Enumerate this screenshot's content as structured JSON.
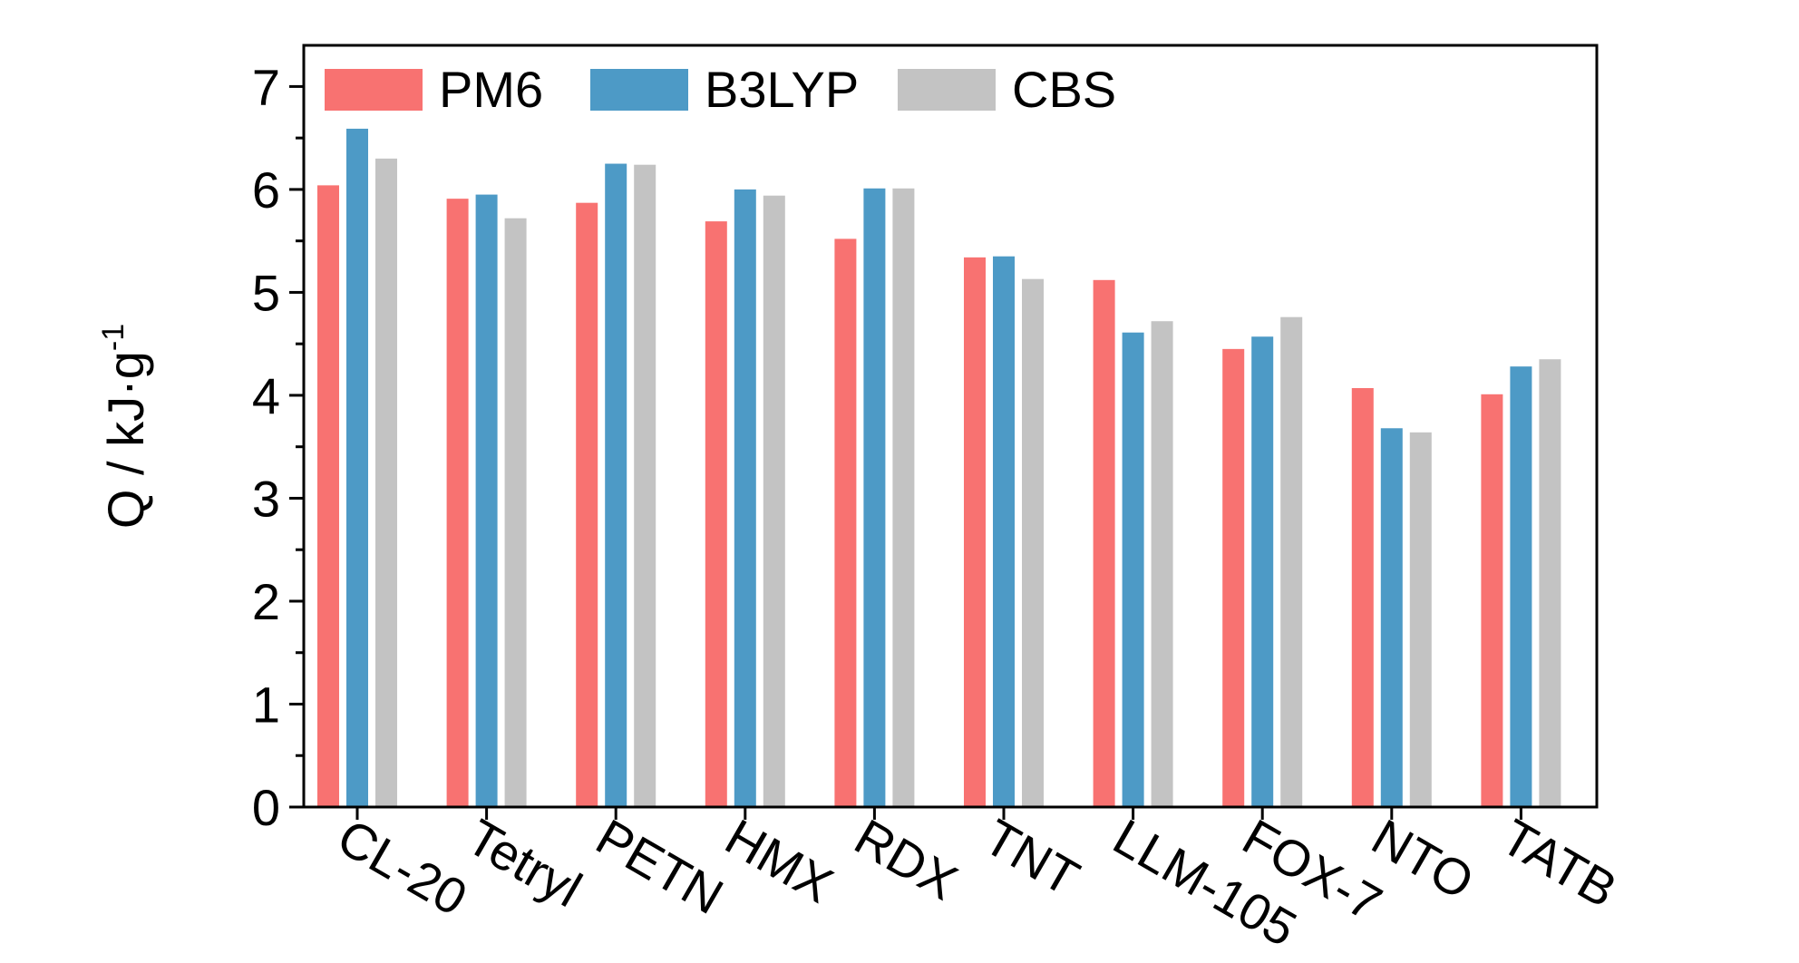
{
  "chart_data": {
    "type": "bar",
    "categories": [
      "CL-20",
      "Tetryl",
      "PETN",
      "HMX",
      "RDX",
      "TNT",
      "LLM-105",
      "FOX-7",
      "NTO",
      "TATB"
    ],
    "series": [
      {
        "name": "PM6",
        "color": "#f87271",
        "values": [
          6.04,
          5.91,
          5.87,
          5.69,
          5.52,
          5.34,
          5.12,
          4.45,
          4.07,
          4.01
        ]
      },
      {
        "name": "B3LYP",
        "color": "#4d9ac6",
        "values": [
          6.59,
          5.95,
          6.25,
          6.0,
          6.01,
          5.35,
          4.61,
          4.57,
          3.68,
          4.28
        ]
      },
      {
        "name": "CBS",
        "color": "#c3c3c3",
        "values": [
          6.3,
          5.72,
          6.24,
          5.94,
          6.01,
          5.13,
          4.72,
          4.76,
          3.64,
          4.35
        ]
      }
    ],
    "ylabel_main": "Q / kJ·g",
    "ylabel_sup": "-1",
    "yticks": [
      "0",
      "1",
      "2",
      "3",
      "4",
      "5",
      "6",
      "7"
    ],
    "ylim": [
      0,
      7.4
    ],
    "legend_position": "top-left",
    "grid": false
  }
}
